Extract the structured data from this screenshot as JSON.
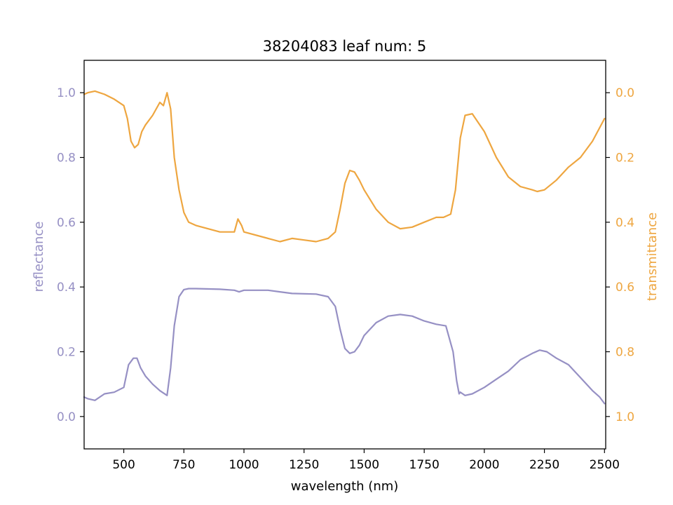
{
  "chart_data": {
    "type": "line",
    "title": "38204083 leaf num: 5",
    "xlabel": "wavelength (nm)",
    "ylabel": "reflectance",
    "y2label": "transmittance",
    "xlim": [
      335,
      2505
    ],
    "ylim": [
      -0.1,
      1.1
    ],
    "y2lim": [
      1.1,
      -0.1
    ],
    "y2_inverted": true,
    "grid": false,
    "x_ticks": [
      "500",
      "750",
      "1000",
      "1250",
      "1500",
      "1750",
      "2000",
      "2250",
      "2500"
    ],
    "y_ticks": [
      "0.0",
      "0.2",
      "0.4",
      "0.6",
      "0.8",
      "1.0"
    ],
    "y2_ticks": [
      "0.0",
      "0.2",
      "0.4",
      "0.6",
      "0.8",
      "1.0"
    ],
    "colors": {
      "reflectance": "#9690c4",
      "transmittance": "#eea640"
    },
    "series": [
      {
        "name": "reflectance",
        "axis": "left",
        "x": [
          335,
          350,
          380,
          420,
          460,
          500,
          520,
          540,
          555,
          570,
          590,
          620,
          650,
          680,
          695,
          710,
          730,
          750,
          770,
          800,
          900,
          960,
          980,
          1000,
          1100,
          1150,
          1200,
          1300,
          1350,
          1380,
          1400,
          1420,
          1440,
          1460,
          1480,
          1500,
          1550,
          1600,
          1650,
          1700,
          1750,
          1800,
          1840,
          1870,
          1885,
          1895,
          1900,
          1910,
          1920,
          1950,
          2000,
          2050,
          2100,
          2150,
          2200,
          2230,
          2260,
          2300,
          2350,
          2400,
          2450,
          2480,
          2500
        ],
        "y": [
          0.06,
          0.055,
          0.05,
          0.07,
          0.075,
          0.09,
          0.16,
          0.18,
          0.18,
          0.15,
          0.125,
          0.1,
          0.08,
          0.065,
          0.15,
          0.28,
          0.37,
          0.392,
          0.395,
          0.395,
          0.393,
          0.39,
          0.385,
          0.39,
          0.39,
          0.385,
          0.38,
          0.378,
          0.37,
          0.34,
          0.27,
          0.21,
          0.195,
          0.2,
          0.22,
          0.25,
          0.29,
          0.31,
          0.315,
          0.31,
          0.295,
          0.285,
          0.28,
          0.2,
          0.11,
          0.07,
          0.075,
          0.07,
          0.065,
          0.07,
          0.09,
          0.115,
          0.14,
          0.175,
          0.195,
          0.205,
          0.2,
          0.18,
          0.16,
          0.12,
          0.08,
          0.06,
          0.04
        ]
      },
      {
        "name": "transmittance",
        "axis": "right",
        "x": [
          335,
          350,
          380,
          420,
          460,
          500,
          515,
          530,
          545,
          560,
          575,
          590,
          620,
          650,
          665,
          680,
          695,
          710,
          730,
          750,
          770,
          800,
          900,
          960,
          975,
          990,
          1000,
          1100,
          1150,
          1200,
          1250,
          1300,
          1350,
          1380,
          1400,
          1420,
          1440,
          1460,
          1480,
          1500,
          1550,
          1600,
          1650,
          1700,
          1750,
          1800,
          1830,
          1860,
          1880,
          1900,
          1920,
          1950,
          2000,
          2050,
          2100,
          2150,
          2200,
          2220,
          2250,
          2300,
          2350,
          2400,
          2450,
          2500
        ],
        "y": [
          0.005,
          0.0,
          -0.005,
          0.005,
          0.02,
          0.04,
          0.08,
          0.15,
          0.17,
          0.16,
          0.12,
          0.1,
          0.07,
          0.03,
          0.04,
          0.0,
          0.05,
          0.2,
          0.3,
          0.37,
          0.4,
          0.41,
          0.43,
          0.43,
          0.39,
          0.41,
          0.43,
          0.45,
          0.46,
          0.45,
          0.455,
          0.46,
          0.45,
          0.43,
          0.36,
          0.28,
          0.24,
          0.245,
          0.27,
          0.3,
          0.36,
          0.4,
          0.42,
          0.415,
          0.4,
          0.385,
          0.385,
          0.375,
          0.3,
          0.14,
          0.07,
          0.065,
          0.12,
          0.2,
          0.26,
          0.29,
          0.3,
          0.305,
          0.3,
          0.27,
          0.23,
          0.2,
          0.15,
          0.08
        ]
      }
    ]
  }
}
